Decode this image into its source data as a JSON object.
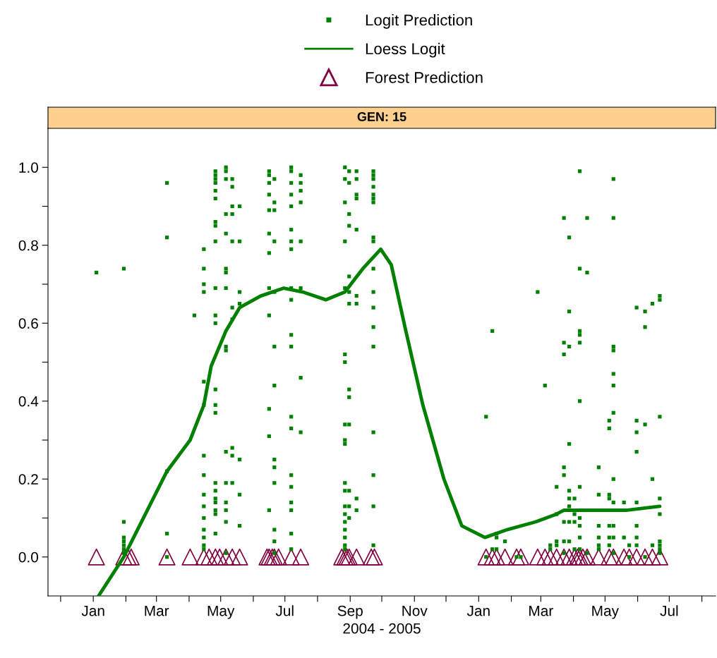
{
  "chart_data": {
    "type": "scatter",
    "title": "GEN: 15",
    "xlabel": "2004 - 2005",
    "legend": "top",
    "xlim": [
      "2003-11-19",
      "2005-08-14"
    ],
    "xticks": [
      {
        "value": "2003-12-01",
        "label": null
      },
      {
        "value": "2004-01-01",
        "label": "Jan"
      },
      {
        "value": "2004-02-01",
        "label": null
      },
      {
        "value": "2004-03-01",
        "label": "Mar"
      },
      {
        "value": "2004-04-01",
        "label": null
      },
      {
        "value": "2004-05-01",
        "label": "May"
      },
      {
        "value": "2004-06-01",
        "label": null
      },
      {
        "value": "2004-07-01",
        "label": "Jul"
      },
      {
        "value": "2004-08-01",
        "label": null
      },
      {
        "value": "2004-09-01",
        "label": "Sep"
      },
      {
        "value": "2004-10-01",
        "label": null
      },
      {
        "value": "2004-11-01",
        "label": "Nov"
      },
      {
        "value": "2004-12-01",
        "label": null
      },
      {
        "value": "2005-01-01",
        "label": "Jan"
      },
      {
        "value": "2005-02-01",
        "label": null
      },
      {
        "value": "2005-03-01",
        "label": "Mar"
      },
      {
        "value": "2005-04-01",
        "label": null
      },
      {
        "value": "2005-05-01",
        "label": "May"
      },
      {
        "value": "2005-06-01",
        "label": null
      },
      {
        "value": "2005-07-01",
        "label": "Jul"
      },
      {
        "value": "2005-08-01",
        "label": null
      }
    ],
    "ylim": [
      -0.1,
      1.1
    ],
    "yticks": [
      {
        "value": 0,
        "label": "0.0"
      },
      {
        "value": 0.1,
        "label": null
      },
      {
        "value": 0.2,
        "label": "0.2"
      },
      {
        "value": 0.3,
        "label": null
      },
      {
        "value": 0.4,
        "label": "0.4"
      },
      {
        "value": 0.5,
        "label": null
      },
      {
        "value": 0.6,
        "label": "0.6"
      },
      {
        "value": 0.7,
        "label": null
      },
      {
        "value": 0.8,
        "label": "0.8"
      },
      {
        "value": 0.9,
        "label": null
      },
      {
        "value": 1,
        "label": "1.0"
      }
    ],
    "series": [
      {
        "name": "Logit Prediction",
        "marker": "square",
        "color": "#008000",
        "x": [
          "2004-01-04",
          "2004-01-30",
          "2004-01-30",
          "2004-01-30",
          "2004-01-30",
          "2004-01-30",
          "2004-01-30",
          "2004-01-30",
          "2004-03-11",
          "2004-03-11",
          "2004-03-11",
          "2004-03-11",
          "2004-03-11",
          "2004-04-06",
          "2004-04-15",
          "2004-04-15",
          "2004-04-15",
          "2004-04-15",
          "2004-04-15",
          "2004-04-15",
          "2004-04-15",
          "2004-04-15",
          "2004-04-15",
          "2004-04-15",
          "2004-04-15",
          "2004-04-15",
          "2004-04-15",
          "2004-04-15",
          "2004-04-15",
          "2004-04-26",
          "2004-04-26",
          "2004-04-26",
          "2004-04-26",
          "2004-04-26",
          "2004-04-26",
          "2004-04-26",
          "2004-04-26",
          "2004-04-26",
          "2004-04-26",
          "2004-04-26",
          "2004-04-26",
          "2004-04-26",
          "2004-04-26",
          "2004-04-26",
          "2004-04-26",
          "2004-04-26",
          "2004-04-26",
          "2004-04-26",
          "2004-04-26",
          "2004-04-26",
          "2004-04-26",
          "2004-05-06",
          "2004-05-06",
          "2004-05-06",
          "2004-05-06",
          "2004-05-06",
          "2004-05-06",
          "2004-05-06",
          "2004-05-06",
          "2004-05-06",
          "2004-05-06",
          "2004-05-06",
          "2004-05-06",
          "2004-05-06",
          "2004-05-06",
          "2004-05-06",
          "2004-05-06",
          "2004-05-12",
          "2004-05-12",
          "2004-05-12",
          "2004-05-12",
          "2004-05-12",
          "2004-05-12",
          "2004-05-12",
          "2004-05-12",
          "2004-05-12",
          "2004-05-12",
          "2004-05-19",
          "2004-05-19",
          "2004-05-19",
          "2004-05-19",
          "2004-05-19",
          "2004-05-19",
          "2004-05-19",
          "2004-06-16",
          "2004-06-16",
          "2004-06-16",
          "2004-06-16",
          "2004-06-16",
          "2004-06-16",
          "2004-06-16",
          "2004-06-16",
          "2004-06-16",
          "2004-06-16",
          "2004-06-16",
          "2004-06-16",
          "2004-06-21",
          "2004-06-21",
          "2004-06-21",
          "2004-06-21",
          "2004-06-21",
          "2004-06-21",
          "2004-06-21",
          "2004-06-21",
          "2004-06-21",
          "2004-06-21",
          "2004-06-21",
          "2004-06-21",
          "2004-06-21",
          "2004-07-07",
          "2004-07-07",
          "2004-07-07",
          "2004-07-07",
          "2004-07-07",
          "2004-07-07",
          "2004-07-07",
          "2004-07-07",
          "2004-07-07",
          "2004-07-07",
          "2004-07-07",
          "2004-07-07",
          "2004-07-07",
          "2004-07-07",
          "2004-07-07",
          "2004-07-07",
          "2004-07-07",
          "2004-07-07",
          "2004-07-07",
          "2004-07-07",
          "2004-07-16",
          "2004-07-16",
          "2004-07-16",
          "2004-07-16",
          "2004-07-16",
          "2004-07-16",
          "2004-07-16",
          "2004-07-16",
          "2004-08-27",
          "2004-08-27",
          "2004-08-27",
          "2004-08-27",
          "2004-08-27",
          "2004-08-27",
          "2004-08-27",
          "2004-08-27",
          "2004-08-27",
          "2004-08-27",
          "2004-08-27",
          "2004-08-27",
          "2004-08-27",
          "2004-08-27",
          "2004-08-27",
          "2004-08-27",
          "2004-08-27",
          "2004-08-27",
          "2004-08-27",
          "2004-08-31",
          "2004-08-31",
          "2004-08-31",
          "2004-08-31",
          "2004-08-31",
          "2004-08-31",
          "2004-08-31",
          "2004-08-31",
          "2004-08-31",
          "2004-08-31",
          "2004-08-31",
          "2004-08-31",
          "2004-08-31",
          "2004-09-07",
          "2004-09-07",
          "2004-09-07",
          "2004-09-07",
          "2004-09-07",
          "2004-09-07",
          "2004-09-07",
          "2004-09-07",
          "2004-09-07",
          "2004-09-23",
          "2004-09-23",
          "2004-09-23",
          "2004-09-23",
          "2004-09-23",
          "2004-09-23",
          "2004-09-23",
          "2004-09-23",
          "2004-09-23",
          "2004-09-23",
          "2004-09-23",
          "2004-09-23",
          "2004-09-23",
          "2004-09-23",
          "2004-09-23",
          "2004-09-23",
          "2004-09-23",
          "2004-09-23",
          "2005-01-08",
          "2005-01-08",
          "2005-01-14",
          "2005-01-14",
          "2005-01-18",
          "2005-01-18",
          "2005-01-18",
          "2005-01-26",
          "2005-02-06",
          "2005-02-10",
          "2005-02-26",
          "2005-03-05",
          "2005-03-10",
          "2005-03-10",
          "2005-03-16",
          "2005-03-16",
          "2005-03-16",
          "2005-03-16",
          "2005-03-23",
          "2005-03-23",
          "2005-03-23",
          "2005-03-23",
          "2005-03-23",
          "2005-03-23",
          "2005-03-23",
          "2005-03-23",
          "2005-03-28",
          "2005-03-28",
          "2005-03-28",
          "2005-03-28",
          "2005-03-28",
          "2005-03-28",
          "2005-03-28",
          "2005-03-28",
          "2005-03-28",
          "2005-04-02",
          "2005-04-02",
          "2005-04-02",
          "2005-04-02",
          "2005-04-07",
          "2005-04-07",
          "2005-04-07",
          "2005-04-07",
          "2005-04-07",
          "2005-04-07",
          "2005-04-07",
          "2005-04-07",
          "2005-04-07",
          "2005-04-07",
          "2005-04-07",
          "2005-04-14",
          "2005-04-14",
          "2005-04-14",
          "2005-04-25",
          "2005-04-25",
          "2005-04-25",
          "2005-04-25",
          "2005-04-25",
          "2005-04-25",
          "2005-05-05",
          "2005-05-05",
          "2005-05-05",
          "2005-05-05",
          "2005-05-05",
          "2005-05-05",
          "2005-05-05",
          "2005-05-09",
          "2005-05-09",
          "2005-05-09",
          "2005-05-09",
          "2005-05-09",
          "2005-05-09",
          "2005-05-09",
          "2005-05-09",
          "2005-05-09",
          "2005-05-09",
          "2005-05-09",
          "2005-05-09",
          "2005-05-19",
          "2005-05-19",
          "2005-05-24",
          "2005-05-24",
          "2005-05-31",
          "2005-05-31",
          "2005-05-31",
          "2005-05-31",
          "2005-05-31",
          "2005-05-31",
          "2005-05-31",
          "2005-05-31",
          "2005-06-08",
          "2005-06-08",
          "2005-06-08",
          "2005-06-08",
          "2005-06-15",
          "2005-06-15",
          "2005-06-15",
          "2005-06-22",
          "2005-06-22",
          "2005-06-22",
          "2005-06-22",
          "2005-06-22",
          "2005-06-22",
          "2005-06-22",
          "2005-06-22",
          "2005-06-22"
        ],
        "values": [
          0.73,
          0.74,
          0.09,
          0.05,
          0.04,
          0.03,
          0.02,
          0.01,
          0.96,
          0.82,
          0.22,
          0.06,
          0.0,
          0.62,
          0.79,
          0.74,
          0.7,
          0.68,
          0.45,
          0.39,
          0.26,
          0.21,
          0.16,
          0.13,
          0.1,
          0.07,
          0.05,
          0.03,
          0.02,
          0.99,
          0.98,
          0.97,
          0.96,
          0.94,
          0.92,
          0.86,
          0.85,
          0.81,
          0.69,
          0.62,
          0.6,
          0.43,
          0.39,
          0.37,
          0.19,
          0.17,
          0.15,
          0.14,
          0.12,
          0.11,
          0.06,
          1.0,
          0.99,
          0.97,
          0.88,
          0.83,
          0.74,
          0.73,
          0.69,
          0.54,
          0.53,
          0.27,
          0.19,
          0.14,
          0.12,
          0.09,
          0.01,
          0.97,
          0.95,
          0.9,
          0.88,
          0.81,
          0.64,
          0.61,
          0.28,
          0.26,
          0.19,
          0.9,
          0.81,
          0.68,
          0.65,
          0.25,
          0.16,
          0.08,
          0.99,
          0.98,
          0.96,
          0.93,
          0.89,
          0.83,
          0.78,
          0.69,
          0.62,
          0.38,
          0.31,
          0.12,
          0.97,
          0.91,
          0.89,
          0.81,
          0.68,
          0.54,
          0.44,
          0.25,
          0.23,
          0.19,
          0.07,
          0.04,
          0.01,
          1.0,
          0.99,
          0.96,
          0.93,
          0.9,
          0.84,
          0.81,
          0.79,
          0.69,
          0.66,
          0.57,
          0.54,
          0.36,
          0.33,
          0.21,
          0.18,
          0.14,
          0.12,
          0.06,
          0.02,
          0.98,
          0.96,
          0.94,
          0.91,
          0.81,
          0.69,
          0.46,
          0.32,
          1.0,
          0.97,
          0.91,
          0.81,
          0.69,
          0.52,
          0.5,
          0.34,
          0.3,
          0.29,
          0.19,
          0.17,
          0.13,
          0.11,
          0.09,
          0.07,
          0.05,
          0.03,
          0.02,
          0.99,
          0.96,
          0.88,
          0.85,
          0.72,
          0.68,
          0.65,
          0.43,
          0.41,
          0.34,
          0.17,
          0.13,
          0.1,
          0.99,
          0.97,
          0.93,
          0.92,
          0.84,
          0.67,
          0.65,
          0.15,
          0.12,
          0.99,
          0.98,
          0.97,
          0.95,
          0.93,
          0.92,
          0.91,
          0.82,
          0.81,
          0.74,
          0.68,
          0.64,
          0.59,
          0.54,
          0.32,
          0.21,
          0.13,
          0.03,
          0.36,
          0.0,
          0.58,
          0.02,
          0.06,
          0.05,
          0.02,
          0.04,
          0.0,
          0.0,
          0.68,
          0.44,
          0.03,
          0.02,
          0.18,
          0.11,
          0.04,
          0.03,
          0.87,
          0.55,
          0.52,
          0.23,
          0.21,
          0.09,
          0.04,
          0.01,
          0.82,
          0.63,
          0.54,
          0.29,
          0.17,
          0.15,
          0.13,
          0.09,
          0.04,
          0.15,
          0.11,
          0.09,
          0.02,
          0.99,
          0.74,
          0.58,
          0.57,
          0.55,
          0.4,
          0.18,
          0.1,
          0.08,
          0.05,
          0.02,
          0.87,
          0.73,
          0.01,
          0.23,
          0.16,
          0.08,
          0.05,
          0.03,
          0.02,
          0.35,
          0.33,
          0.16,
          0.15,
          0.08,
          0.05,
          0.03,
          0.97,
          0.87,
          0.54,
          0.53,
          0.47,
          0.44,
          0.37,
          0.2,
          0.14,
          0.08,
          0.05,
          0.01,
          0.14,
          0.05,
          0.03,
          0.0,
          0.64,
          0.35,
          0.32,
          0.27,
          0.14,
          0.08,
          0.05,
          0.03,
          0.63,
          0.59,
          0.34,
          0.0,
          0.65,
          0.2,
          0.03,
          0.67,
          0.66,
          0.36,
          0.15,
          0.11,
          0.04,
          0.03,
          0.02,
          0.01
        ]
      },
      {
        "name": "Loess Logit",
        "type": "line",
        "marker": "none",
        "line_style": "solid",
        "color": "#008000",
        "x": [
          "2004-01-06",
          "2004-01-30",
          "2004-03-11",
          "2004-04-02",
          "2004-04-15",
          "2004-04-22",
          "2004-05-06",
          "2004-05-19",
          "2004-06-08",
          "2004-06-30",
          "2004-07-18",
          "2004-08-09",
          "2004-08-27",
          "2004-09-13",
          "2004-09-30",
          "2004-10-10",
          "2004-10-23",
          "2004-11-09",
          "2004-11-29",
          "2004-12-16",
          "2005-01-07",
          "2005-01-28",
          "2005-02-24",
          "2005-03-16",
          "2005-03-23",
          "2005-04-19",
          "2005-05-09",
          "2005-05-22",
          "2005-06-22"
        ],
        "values": [
          -0.1,
          0.0,
          0.22,
          0.3,
          0.39,
          0.49,
          0.58,
          0.64,
          0.67,
          0.69,
          0.68,
          0.66,
          0.68,
          0.74,
          0.79,
          0.75,
          0.59,
          0.39,
          0.2,
          0.08,
          0.05,
          0.07,
          0.09,
          0.11,
          0.12,
          0.12,
          0.12,
          0.12,
          0.13
        ]
      },
      {
        "name": "Forest Prediction",
        "marker": "triangle",
        "color": "#800040",
        "x": [
          "2004-01-04",
          "2004-01-30",
          "2004-02-03",
          "2004-02-06",
          "2004-03-11",
          "2004-04-02",
          "2004-04-15",
          "2004-04-20",
          "2004-04-26",
          "2004-04-30",
          "2004-05-06",
          "2004-05-12",
          "2004-05-19",
          "2004-06-14",
          "2004-06-16",
          "2004-06-19",
          "2004-06-21",
          "2004-06-25",
          "2004-07-07",
          "2004-07-16",
          "2004-08-24",
          "2004-08-27",
          "2004-08-29",
          "2004-08-31",
          "2004-09-07",
          "2004-09-21",
          "2004-09-24",
          "2005-01-08",
          "2005-01-14",
          "2005-01-18",
          "2005-01-26",
          "2005-02-06",
          "2005-02-10",
          "2005-02-26",
          "2005-03-05",
          "2005-03-10",
          "2005-03-16",
          "2005-03-23",
          "2005-03-28",
          "2005-04-02",
          "2005-04-05",
          "2005-04-07",
          "2005-04-10",
          "2005-04-14",
          "2005-04-25",
          "2005-05-05",
          "2005-05-09",
          "2005-05-19",
          "2005-05-24",
          "2005-05-31",
          "2005-06-08",
          "2005-06-15",
          "2005-06-22"
        ],
        "values": [
          0,
          0,
          0,
          0,
          0,
          0,
          0,
          0,
          0,
          0,
          0,
          0,
          0,
          0,
          0,
          0,
          0,
          0,
          0,
          0,
          0,
          0,
          0,
          0,
          0,
          0,
          0,
          0,
          0,
          0,
          0,
          0,
          0,
          0,
          0,
          0,
          0,
          0,
          0,
          0,
          0,
          0,
          0,
          0,
          0,
          0,
          0,
          0,
          0,
          0,
          0,
          0,
          0
        ]
      }
    ]
  }
}
